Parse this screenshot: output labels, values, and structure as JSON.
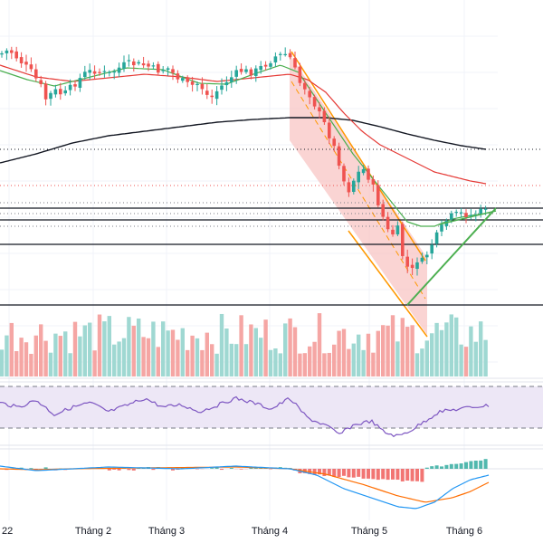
{
  "chart_data": {
    "type": "candlestick",
    "x_ticks": [
      "22",
      "Tháng 2",
      "Tháng 3",
      "Tháng 4",
      "Tháng 5",
      "Tháng 6"
    ],
    "colors": {
      "up": "#26a69a",
      "down": "#ef5350",
      "volume_up": "#9fd8d2",
      "volume_down": "#f5a6a4",
      "ma_fast": "#4caf50",
      "ma_mid": "#e53935",
      "ma_slow": "#131722",
      "channel_fill": "#f8c6c4",
      "channel_border": "#ff9800",
      "support_line": "#4caf50",
      "rsi_line": "#7e57c2",
      "rsi_band": "#ede7f6",
      "macd_line": "#2196f3",
      "signal_line": "#ff6d00"
    },
    "panels": [
      "price",
      "volume",
      "rsi",
      "macd"
    ],
    "grid": true
  }
}
